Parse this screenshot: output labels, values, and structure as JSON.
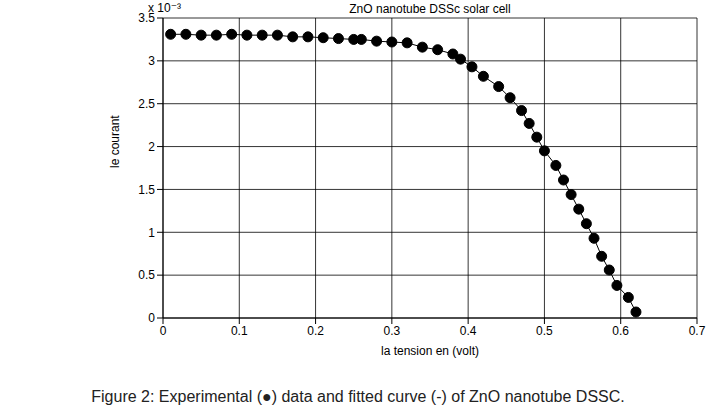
{
  "chart_data": {
    "type": "line",
    "title": "ZnO nanotube DSSc solar cell",
    "x_label": "la tension en (volt)",
    "y_label": "le courant",
    "y_scale_label": "x 10⁻³",
    "caption": "Figure 2: Experimental (●) data and fitted curve (-) of ZnO nanotube DSSC.",
    "x": [
      0.01,
      0.03,
      0.05,
      0.07,
      0.09,
      0.11,
      0.13,
      0.15,
      0.17,
      0.19,
      0.21,
      0.23,
      0.25,
      0.26,
      0.28,
      0.3,
      0.32,
      0.34,
      0.36,
      0.38,
      0.39,
      0.405,
      0.42,
      0.44,
      0.455,
      0.47,
      0.48,
      0.49,
      0.5,
      0.515,
      0.525,
      0.535,
      0.545,
      0.555,
      0.565,
      0.575,
      0.585,
      0.595,
      0.61,
      0.62
    ],
    "values": [
      3.31,
      3.31,
      3.3,
      3.3,
      3.31,
      3.3,
      3.3,
      3.3,
      3.28,
      3.28,
      3.27,
      3.26,
      3.25,
      3.25,
      3.23,
      3.22,
      3.21,
      3.16,
      3.13,
      3.08,
      3.02,
      2.93,
      2.82,
      2.7,
      2.57,
      2.42,
      2.27,
      2.11,
      1.95,
      1.78,
      1.61,
      1.44,
      1.27,
      1.1,
      0.93,
      0.72,
      0.56,
      0.38,
      0.24,
      0.07
    ],
    "xlim": [
      0,
      0.7
    ],
    "ylim": [
      0,
      3.5
    ],
    "xticks": [
      0,
      0.1,
      0.2,
      0.3,
      0.4,
      0.5,
      0.6,
      0.7
    ],
    "yticks": [
      0,
      0.5,
      1,
      1.5,
      2,
      2.5,
      3,
      3.5
    ],
    "grid": true,
    "color": "#000000",
    "marker": "circle",
    "line_style": "solid"
  }
}
